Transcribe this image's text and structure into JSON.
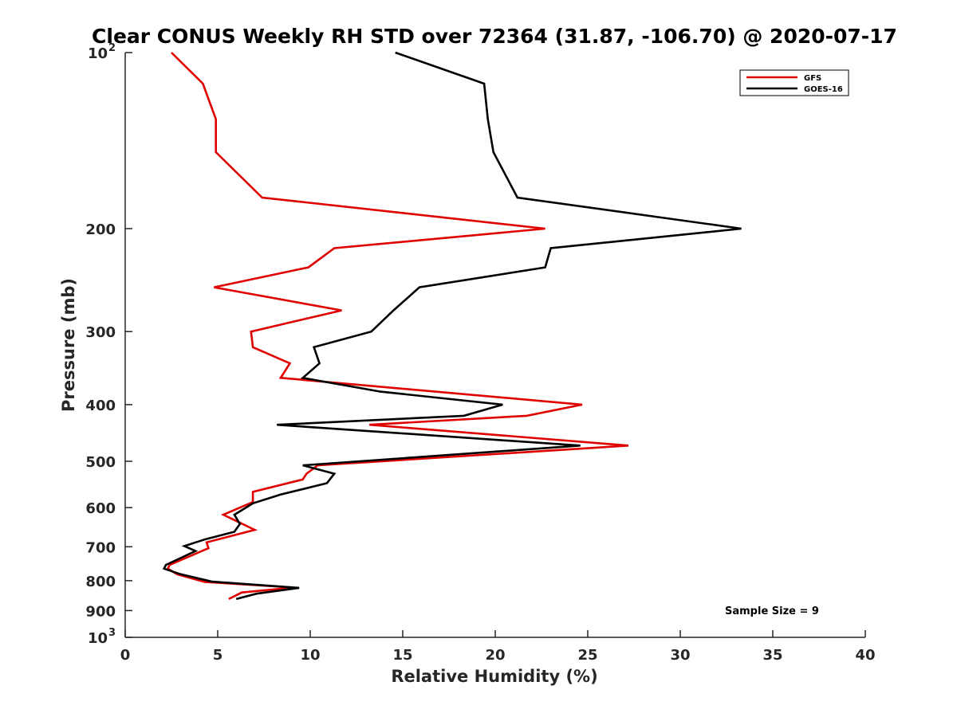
{
  "chart_data": {
    "type": "line",
    "title": "Clear CONUS Weekly RH STD over 72364 (31.87, -106.70) @ 2020-07-17",
    "xlabel": "Relative Humidity (%)",
    "ylabel": "Pressure (mb)",
    "xlim": [
      0,
      40
    ],
    "ylim": [
      100,
      1000
    ],
    "y_scale": "log",
    "y_reversed": true,
    "grid": false,
    "legend_position": "top-right",
    "annotation": "Sample Size = 9",
    "x_ticks": [
      {
        "value": 0,
        "label": "0"
      },
      {
        "value": 5,
        "label": "5"
      },
      {
        "value": 10,
        "label": "10"
      },
      {
        "value": 15,
        "label": "15"
      },
      {
        "value": 20,
        "label": "20"
      },
      {
        "value": 25,
        "label": "25"
      },
      {
        "value": 30,
        "label": "30"
      },
      {
        "value": 35,
        "label": "35"
      },
      {
        "value": 40,
        "label": "40"
      }
    ],
    "y_ticks": [
      {
        "value": 100,
        "label": "10",
        "sup": "2"
      },
      {
        "value": 200,
        "label": "200"
      },
      {
        "value": 300,
        "label": "300"
      },
      {
        "value": 400,
        "label": "400"
      },
      {
        "value": 500,
        "label": "500"
      },
      {
        "value": 600,
        "label": "600"
      },
      {
        "value": 700,
        "label": "700"
      },
      {
        "value": 800,
        "label": "800"
      },
      {
        "value": 900,
        "label": "900"
      },
      {
        "value": 1000,
        "label": "10",
        "sup": "3"
      }
    ],
    "series": [
      {
        "name": "GFS",
        "color": "#e00000",
        "points": [
          [
            2.5,
            100
          ],
          [
            4.2,
            113
          ],
          [
            4.9,
            130
          ],
          [
            4.9,
            148
          ],
          [
            7.4,
            177
          ],
          [
            22.7,
            200
          ],
          [
            11.3,
            216
          ],
          [
            9.9,
            233
          ],
          [
            4.8,
            252
          ],
          [
            11.7,
            276
          ],
          [
            6.8,
            300
          ],
          [
            6.9,
            319
          ],
          [
            8.9,
            340
          ],
          [
            8.4,
            360
          ],
          [
            24.7,
            400
          ],
          [
            21.7,
            418
          ],
          [
            13.2,
            433
          ],
          [
            27.2,
            470
          ],
          [
            10.4,
            508
          ],
          [
            9.8,
            525
          ],
          [
            9.6,
            537
          ],
          [
            6.9,
            564
          ],
          [
            6.9,
            587
          ],
          [
            5.3,
            617
          ],
          [
            7.0,
            655
          ],
          [
            4.4,
            688
          ],
          [
            4.5,
            704
          ],
          [
            2.4,
            752
          ],
          [
            2.3,
            763
          ],
          [
            2.8,
            780
          ],
          [
            4.3,
            804
          ],
          [
            9.1,
            822
          ],
          [
            6.3,
            838
          ],
          [
            5.6,
            860
          ]
        ]
      },
      {
        "name": "GOES-16",
        "color": "#000000",
        "points": [
          [
            14.6,
            100
          ],
          [
            19.4,
            113
          ],
          [
            19.6,
            130
          ],
          [
            19.9,
            148
          ],
          [
            21.2,
            177
          ],
          [
            33.3,
            200
          ],
          [
            23.0,
            216
          ],
          [
            22.7,
            233
          ],
          [
            15.9,
            252
          ],
          [
            14.5,
            276
          ],
          [
            13.3,
            300
          ],
          [
            10.2,
            319
          ],
          [
            10.5,
            340
          ],
          [
            9.6,
            360
          ],
          [
            13.8,
            380
          ],
          [
            20.4,
            400
          ],
          [
            18.3,
            418
          ],
          [
            8.2,
            433
          ],
          [
            24.6,
            470
          ],
          [
            9.6,
            508
          ],
          [
            11.3,
            525
          ],
          [
            10.9,
            545
          ],
          [
            8.4,
            570
          ],
          [
            6.9,
            590
          ],
          [
            5.9,
            617
          ],
          [
            6.2,
            640
          ],
          [
            5.9,
            660
          ],
          [
            4.3,
            680
          ],
          [
            3.2,
            698
          ],
          [
            3.8,
            712
          ],
          [
            2.2,
            752
          ],
          [
            2.1,
            763
          ],
          [
            3.0,
            780
          ],
          [
            4.7,
            803
          ],
          [
            9.4,
            823
          ],
          [
            7.1,
            842
          ],
          [
            6.0,
            860
          ]
        ]
      }
    ]
  }
}
